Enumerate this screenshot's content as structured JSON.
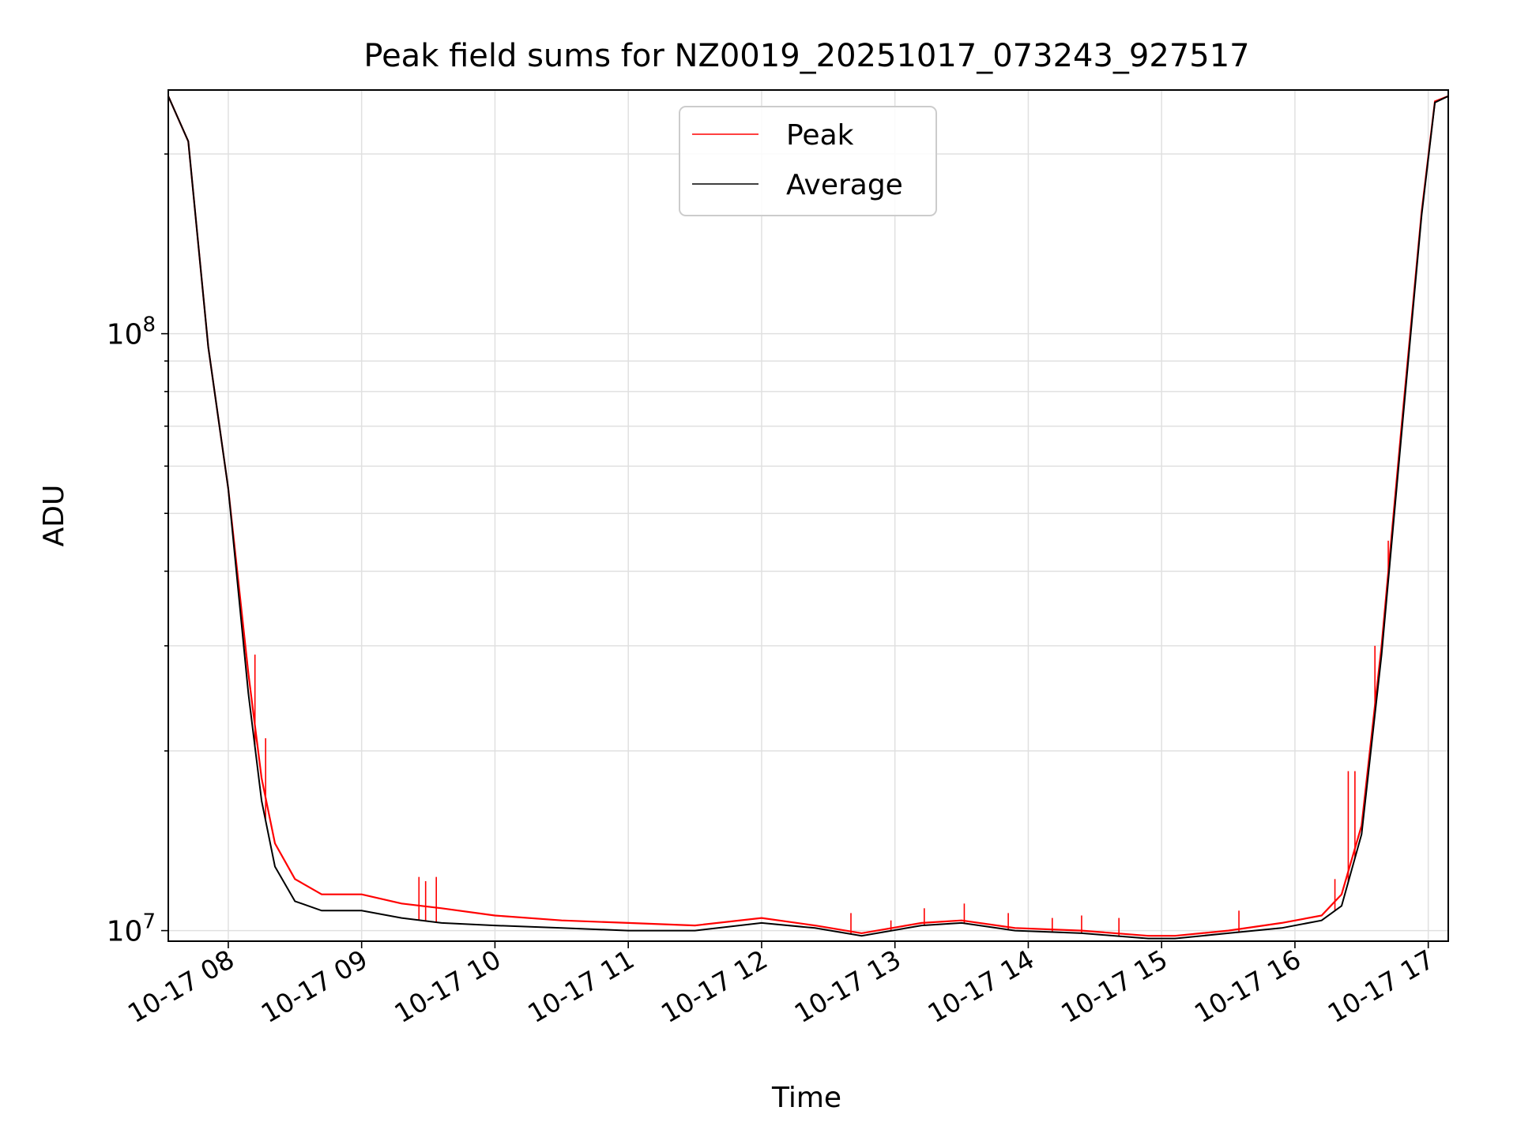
{
  "chart_data": {
    "type": "line",
    "title": "Peak field sums for NZ0019_20251017_073243_927517",
    "xlabel": "Time",
    "ylabel": "ADU",
    "yscale": "log",
    "ylim": [
      9600000,
      256000000
    ],
    "xlim_hours": [
      7.55,
      17.15
    ],
    "grid": true,
    "legend_position": "upper center",
    "x_tick_labels": [
      "10-17 08",
      "10-17 09",
      "10-17 10",
      "10-17 11",
      "10-17 12",
      "10-17 13",
      "10-17 14",
      "10-17 15",
      "10-17 16",
      "10-17 17"
    ],
    "x_tick_hours": [
      8,
      9,
      10,
      11,
      12,
      13,
      14,
      15,
      16,
      17
    ],
    "y_tick_base": "10",
    "y_tick_exponents": [
      "7",
      "8"
    ],
    "y_tick_values": [
      10000000,
      100000000
    ],
    "series": [
      {
        "name": "Peak",
        "color": "#ff0000",
        "x_hours": [
          7.55,
          7.7,
          7.85,
          8.0,
          8.15,
          8.25,
          8.35,
          8.5,
          8.7,
          9.0,
          9.3,
          9.6,
          10.0,
          10.5,
          11.0,
          11.5,
          12.0,
          12.4,
          12.75,
          13.2,
          13.5,
          13.9,
          14.4,
          14.9,
          15.1,
          15.5,
          15.9,
          16.2,
          16.35,
          16.5,
          16.65,
          16.8,
          16.95,
          17.05,
          17.15
        ],
        "values": [
          250000000,
          210000000,
          95000000,
          55000000,
          27000000,
          18000000,
          14000000,
          12200000,
          11500000,
          11500000,
          11100000,
          10900000,
          10600000,
          10400000,
          10300000,
          10200000,
          10500000,
          10200000,
          9900000,
          10300000,
          10400000,
          10100000,
          10000000,
          9800000,
          9800000,
          10000000,
          10300000,
          10600000,
          11500000,
          15000000,
          30000000,
          70000000,
          160000000,
          245000000,
          250000000
        ],
        "spikes": [
          {
            "x_hour": 8.2,
            "value": 29000000
          },
          {
            "x_hour": 8.28,
            "value": 21000000
          },
          {
            "x_hour": 9.43,
            "value": 12300000
          },
          {
            "x_hour": 9.48,
            "value": 12100000
          },
          {
            "x_hour": 9.56,
            "value": 12300000
          },
          {
            "x_hour": 12.67,
            "value": 10700000
          },
          {
            "x_hour": 12.97,
            "value": 10400000
          },
          {
            "x_hour": 13.22,
            "value": 10900000
          },
          {
            "x_hour": 13.52,
            "value": 11100000
          },
          {
            "x_hour": 13.85,
            "value": 10700000
          },
          {
            "x_hour": 14.18,
            "value": 10500000
          },
          {
            "x_hour": 14.4,
            "value": 10600000
          },
          {
            "x_hour": 14.68,
            "value": 10500000
          },
          {
            "x_hour": 15.58,
            "value": 10800000
          },
          {
            "x_hour": 16.3,
            "value": 12200000
          },
          {
            "x_hour": 16.4,
            "value": 18500000
          },
          {
            "x_hour": 16.45,
            "value": 18500000
          },
          {
            "x_hour": 16.6,
            "value": 30000000
          },
          {
            "x_hour": 16.7,
            "value": 45000000
          }
        ]
      },
      {
        "name": "Average",
        "color": "#000000",
        "x_hours": [
          7.55,
          7.7,
          7.85,
          8.0,
          8.15,
          8.25,
          8.35,
          8.5,
          8.7,
          9.0,
          9.3,
          9.6,
          10.0,
          10.5,
          11.0,
          11.5,
          12.0,
          12.4,
          12.75,
          13.2,
          13.5,
          13.9,
          14.4,
          14.9,
          15.1,
          15.5,
          15.9,
          16.2,
          16.35,
          16.5,
          16.65,
          16.8,
          16.95,
          17.05,
          17.15
        ],
        "values": [
          250000000,
          210000000,
          95000000,
          55000000,
          25000000,
          16500000,
          12800000,
          11200000,
          10800000,
          10800000,
          10500000,
          10300000,
          10200000,
          10100000,
          10000000,
          10000000,
          10300000,
          10100000,
          9800000,
          10200000,
          10300000,
          10000000,
          9900000,
          9700000,
          9700000,
          9900000,
          10100000,
          10400000,
          11000000,
          14500000,
          29000000,
          68000000,
          158000000,
          244000000,
          250000000
        ]
      }
    ]
  }
}
